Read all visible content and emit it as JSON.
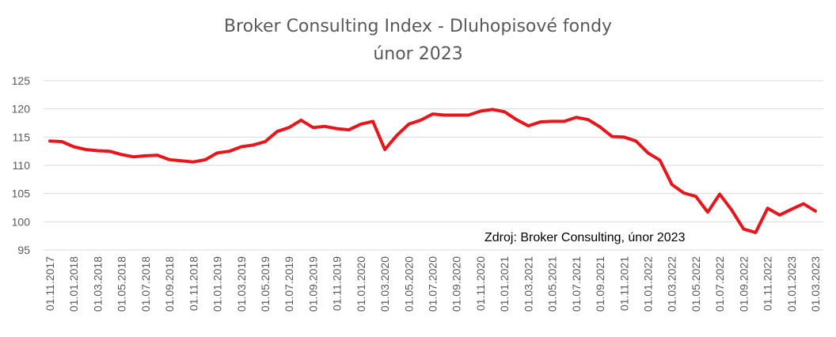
{
  "chart_data": {
    "type": "line",
    "title": "Broker Consulting Index - Dluhopisové fondy",
    "subtitle": "únor 2023",
    "annotation": "Zdroj: Broker Consulting, únor 2023",
    "xlabel": "",
    "ylabel": "",
    "ylim": [
      95,
      125
    ],
    "yticks": [
      95,
      100,
      105,
      110,
      115,
      120,
      125
    ],
    "grid": true,
    "legend": "none",
    "line_color": "#e8151b",
    "x_tick_labels": [
      "01.11.2017",
      "01.01.2018",
      "01.03.2018",
      "01.05.2018",
      "01.07.2018",
      "01.09.2018",
      "01.11.2018",
      "01.01.2019",
      "01.03.2019",
      "01.05.2019",
      "01.07.2019",
      "01.09.2019",
      "01.11.2019",
      "01.01.2020",
      "01.03.2020",
      "01.05.2020",
      "01.07.2020",
      "01.09.2020",
      "01.11.2020",
      "01.01.2021",
      "01.03.2021",
      "01.05.2021",
      "01.07.2021",
      "01.09.2021",
      "01.11.2021",
      "01.01.2022",
      "01.03.2022",
      "01.05.2022",
      "01.07.2022",
      "01.09.2022",
      "01.11.2022",
      "01.01.2023",
      "01.03.2023"
    ],
    "x": [
      "01.11.2017",
      "01.12.2017",
      "01.01.2018",
      "01.02.2018",
      "01.03.2018",
      "01.04.2018",
      "01.05.2018",
      "01.06.2018",
      "01.07.2018",
      "01.08.2018",
      "01.09.2018",
      "01.10.2018",
      "01.11.2018",
      "01.12.2018",
      "01.01.2019",
      "01.02.2019",
      "01.03.2019",
      "01.04.2019",
      "01.05.2019",
      "01.06.2019",
      "01.07.2019",
      "01.08.2019",
      "01.09.2019",
      "01.10.2019",
      "01.11.2019",
      "01.12.2019",
      "01.01.2020",
      "01.02.2020",
      "01.03.2020",
      "01.04.2020",
      "01.05.2020",
      "01.06.2020",
      "01.07.2020",
      "01.08.2020",
      "01.09.2020",
      "01.10.2020",
      "01.11.2020",
      "01.12.2020",
      "01.01.2021",
      "01.02.2021",
      "01.03.2021",
      "01.04.2021",
      "01.05.2021",
      "01.06.2021",
      "01.07.2021",
      "01.08.2021",
      "01.09.2021",
      "01.10.2021",
      "01.11.2021",
      "01.12.2021",
      "01.01.2022",
      "01.02.2022",
      "01.03.2022",
      "01.04.2022",
      "01.05.2022",
      "01.06.2022",
      "01.07.2022",
      "01.08.2022",
      "01.09.2022",
      "01.10.2022",
      "01.11.2022",
      "01.12.2022",
      "01.01.2023",
      "01.02.2023",
      "01.03.2023"
    ],
    "values": [
      114.3,
      114.2,
      113.3,
      112.8,
      112.6,
      112.5,
      111.9,
      111.5,
      111.7,
      111.8,
      111.0,
      110.8,
      110.6,
      111.0,
      112.2,
      112.5,
      113.3,
      113.6,
      114.2,
      116.0,
      116.7,
      118.0,
      116.7,
      116.9,
      116.5,
      116.3,
      117.3,
      117.8,
      112.8,
      115.3,
      117.3,
      118.0,
      119.1,
      118.9,
      118.9,
      118.9,
      119.6,
      119.9,
      119.5,
      118.1,
      117.0,
      117.7,
      117.8,
      117.8,
      118.5,
      118.1,
      116.8,
      115.1,
      115.0,
      114.3,
      112.2,
      110.9,
      106.6,
      105.1,
      104.5,
      101.7,
      104.9,
      102.1,
      98.7,
      98.1,
      102.4,
      101.2,
      102.2,
      103.2,
      101.9
    ]
  }
}
